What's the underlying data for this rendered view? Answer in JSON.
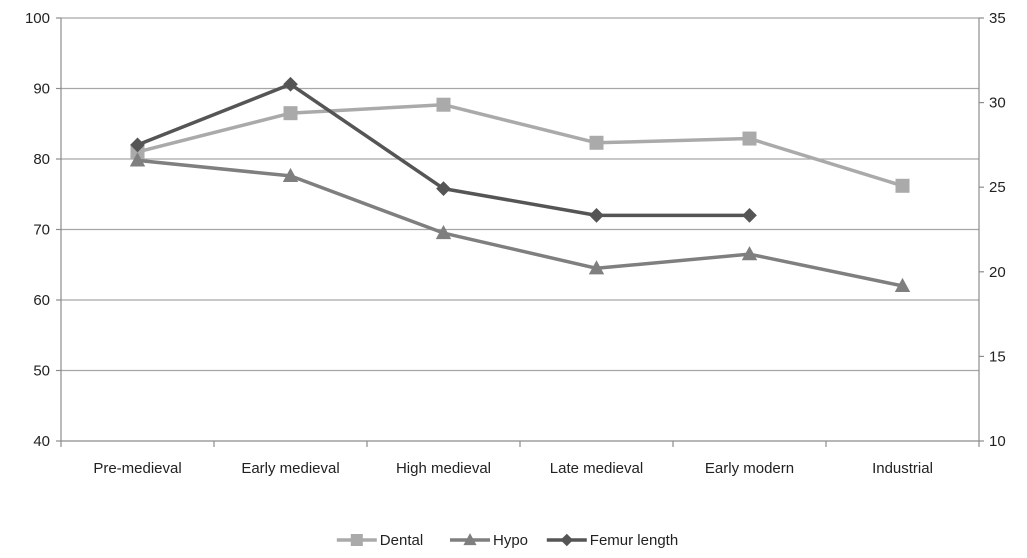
{
  "chart_data": {
    "type": "line",
    "categories": [
      "Pre-medieval",
      "Early medieval",
      "High medieval",
      "Late medieval",
      "Early modern",
      "Industrial"
    ],
    "grid": true,
    "legend_position": "bottom",
    "y_left": {
      "ylim": [
        40,
        100
      ],
      "ticks": [
        40,
        50,
        60,
        70,
        80,
        90,
        100
      ]
    },
    "y_right": {
      "ylim": [
        10,
        35
      ],
      "ticks": [
        10,
        15,
        20,
        25,
        30,
        35
      ]
    },
    "series": [
      {
        "name": "Dental",
        "axis": "left",
        "marker": "square",
        "color": "#aaaaaa",
        "values": [
          81,
          86.5,
          87.7,
          82.3,
          82.9,
          76.2
        ]
      },
      {
        "name": "Hypo",
        "axis": "left",
        "marker": "triangle",
        "color": "#7f7f7f",
        "values": [
          79.8,
          77.6,
          69.5,
          64.5,
          66.5,
          62
        ]
      },
      {
        "name": "Femur length",
        "axis": "left",
        "marker": "diamond",
        "color": "#555555",
        "values": [
          82,
          90.6,
          75.8,
          72,
          72,
          null
        ]
      }
    ]
  }
}
